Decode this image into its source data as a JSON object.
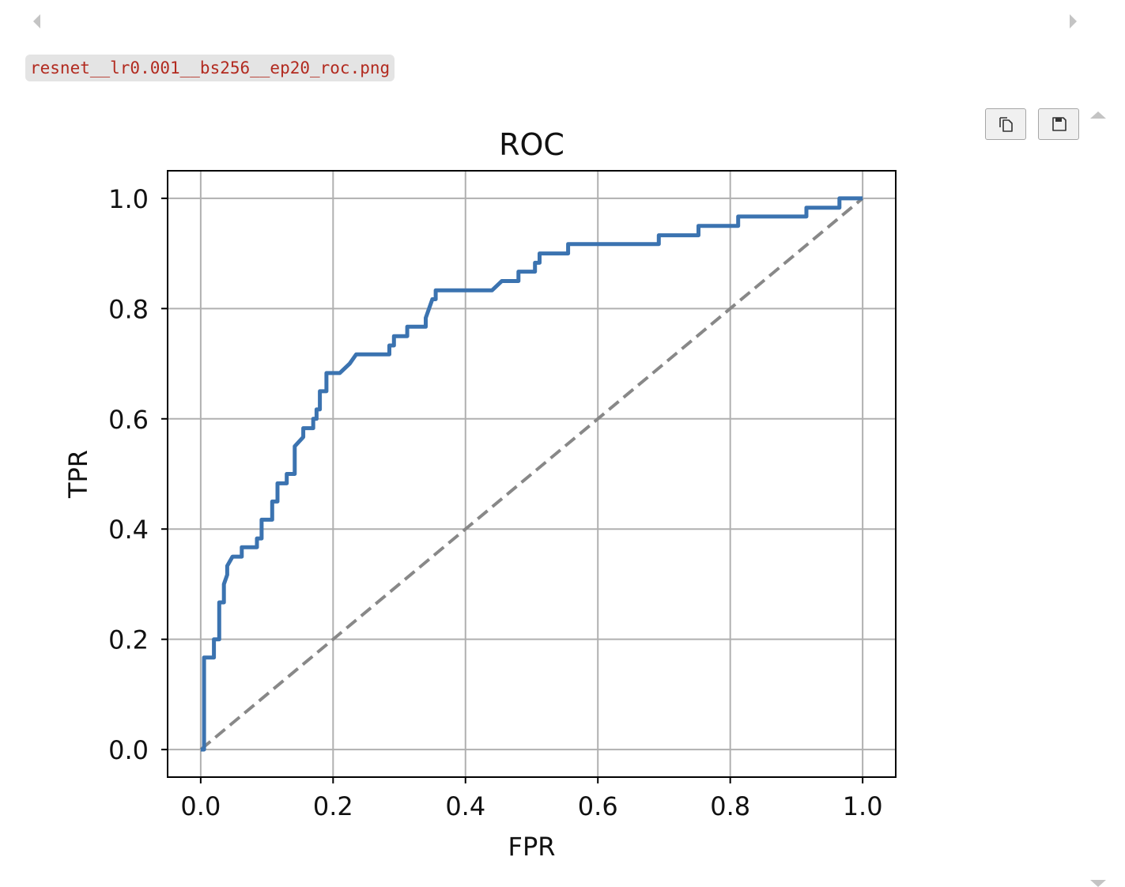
{
  "cell": {
    "filename": "resnet__lr0.001__bs256__ep20_roc.png"
  },
  "toolbar": {
    "copy_icon": "copy-icon",
    "save_icon": "floppy-disk-icon"
  },
  "colors": {
    "roc_line": "#3b73b0",
    "diagonal": "#888888",
    "grid": "#b0b0b0",
    "filename_text": "#b22a1f",
    "filename_bg": "#e4e4e4"
  },
  "chart_data": {
    "type": "line",
    "title": "ROC",
    "xlabel": "FPR",
    "ylabel": "TPR",
    "xlim": [
      -0.05,
      1.05
    ],
    "ylim": [
      -0.05,
      1.05
    ],
    "xticks": [
      "0.0",
      "0.2",
      "0.4",
      "0.6",
      "0.8",
      "1.0"
    ],
    "yticks": [
      "0.0",
      "0.2",
      "0.4",
      "0.6",
      "0.8",
      "1.0"
    ],
    "grid": true,
    "legend": "none",
    "series": [
      {
        "style": "solid",
        "x": [
          0.0,
          0.005,
          0.005,
          0.02,
          0.02,
          0.028,
          0.028,
          0.035,
          0.035,
          0.04,
          0.04,
          0.048,
          0.048,
          0.062,
          0.062,
          0.085,
          0.085,
          0.092,
          0.092,
          0.108,
          0.108,
          0.116,
          0.116,
          0.13,
          0.13,
          0.142,
          0.142,
          0.155,
          0.155,
          0.17,
          0.17,
          0.175,
          0.175,
          0.18,
          0.18,
          0.19,
          0.19,
          0.21,
          0.21,
          0.225,
          0.235,
          0.285,
          0.285,
          0.292,
          0.292,
          0.312,
          0.312,
          0.34,
          0.34,
          0.345,
          0.345,
          0.35,
          0.35,
          0.355,
          0.355,
          0.375,
          0.375,
          0.44,
          0.455,
          0.48,
          0.48,
          0.505,
          0.505,
          0.512,
          0.512,
          0.555,
          0.555,
          0.692,
          0.692,
          0.752,
          0.752,
          0.812,
          0.812,
          0.915,
          0.915,
          0.965,
          0.965,
          1.0
        ],
        "y": [
          0.0,
          0.0,
          0.167,
          0.167,
          0.2,
          0.2,
          0.267,
          0.267,
          0.3,
          0.317,
          0.333,
          0.35,
          0.35,
          0.35,
          0.367,
          0.367,
          0.383,
          0.383,
          0.417,
          0.417,
          0.45,
          0.45,
          0.483,
          0.483,
          0.5,
          0.5,
          0.55,
          0.567,
          0.583,
          0.583,
          0.6,
          0.6,
          0.617,
          0.617,
          0.65,
          0.65,
          0.683,
          0.683,
          0.683,
          0.7,
          0.717,
          0.717,
          0.733,
          0.733,
          0.75,
          0.75,
          0.767,
          0.767,
          0.783,
          0.8,
          0.8,
          0.817,
          0.817,
          0.817,
          0.833,
          0.833,
          0.833,
          0.833,
          0.85,
          0.85,
          0.867,
          0.867,
          0.883,
          0.883,
          0.9,
          0.9,
          0.917,
          0.917,
          0.933,
          0.933,
          0.95,
          0.95,
          0.967,
          0.967,
          0.983,
          0.983,
          1.0,
          1.0
        ]
      },
      {
        "style": "dashed",
        "x": [
          0.0,
          1.0
        ],
        "y": [
          0.0,
          1.0
        ]
      }
    ]
  }
}
